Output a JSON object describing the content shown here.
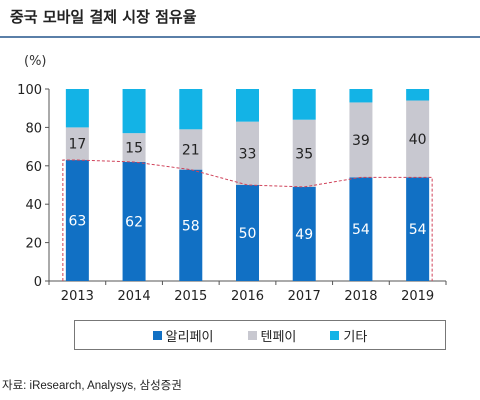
{
  "title": "중국 모바일 결제 시장 점유율",
  "unit_label": "(%)",
  "source": "자료: iResearch, Analysys, 삼성증권",
  "chart_data": {
    "type": "bar",
    "stacked": true,
    "categories": [
      "2013",
      "2014",
      "2015",
      "2016",
      "2017",
      "2018",
      "2019"
    ],
    "series": [
      {
        "name": "알리페이",
        "values": [
          63,
          62,
          58,
          50,
          49,
          54,
          54
        ],
        "color": "#1170c4"
      },
      {
        "name": "텐페이",
        "values": [
          17,
          15,
          21,
          33,
          35,
          39,
          40
        ],
        "color": "#c8c8d0"
      },
      {
        "name": "기타",
        "values": [
          20,
          23,
          21,
          17,
          16,
          7,
          6
        ],
        "color": "#13b3e6"
      }
    ],
    "ylim": [
      0,
      100
    ],
    "yticks": [
      0,
      20,
      40,
      60,
      80,
      100
    ],
    "legend_position": "bottom",
    "grid": false
  }
}
